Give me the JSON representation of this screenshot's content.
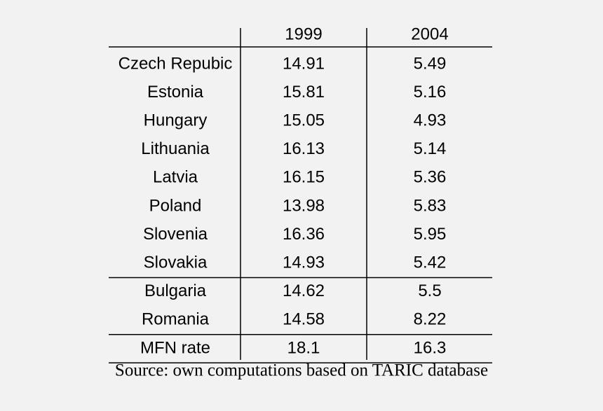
{
  "table": {
    "header": [
      "1999",
      "2004"
    ],
    "groups": [
      [
        [
          "Czech Repubic",
          14.91,
          5.49
        ],
        [
          "Estonia",
          15.81,
          5.16
        ],
        [
          "Hungary",
          15.05,
          4.93
        ],
        [
          "Lithuania",
          16.13,
          5.14
        ],
        [
          "Latvia",
          16.15,
          5.36
        ],
        [
          "Poland",
          13.98,
          5.83
        ],
        [
          "Slovenia",
          16.36,
          5.95
        ],
        [
          "Slovakia",
          14.93,
          5.42
        ]
      ],
      [
        [
          "Bulgaria",
          14.62,
          5.5
        ],
        [
          "Romania",
          14.58,
          8.22
        ]
      ],
      [
        [
          "MFN rate",
          18.1,
          16.3
        ]
      ]
    ]
  },
  "source": "Source: own computations based on TARIC database"
}
